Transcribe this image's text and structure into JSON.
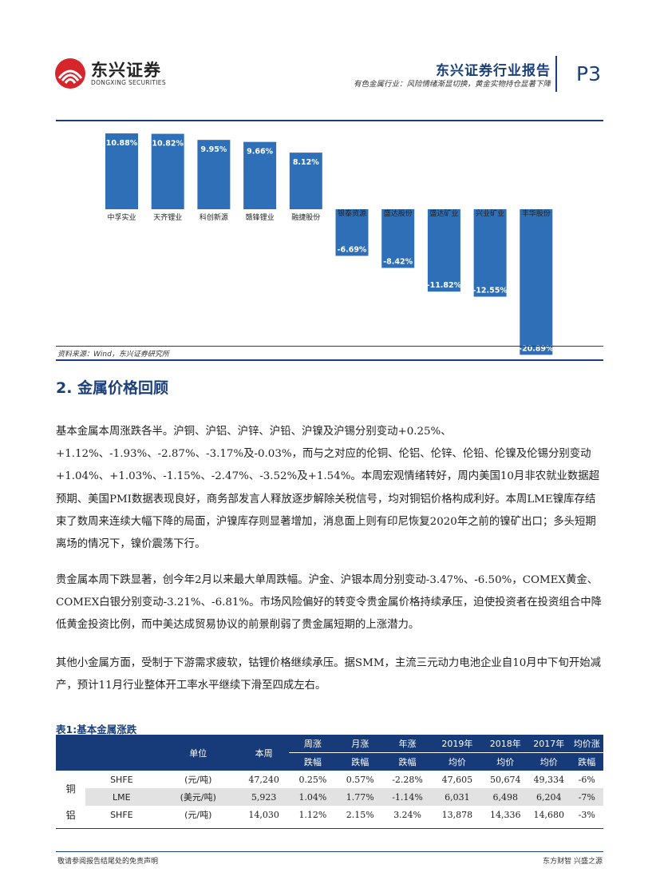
{
  "header": {
    "logo_cn": "东兴证券",
    "logo_en": "DONGXING SECURITIES",
    "report_title": "东兴证券行业报告",
    "report_subtitle": "有色金属行业：风险情绪渐显切换，黄金实物持仓显著下降",
    "page_number": "P3"
  },
  "chart_data": {
    "type": "bar",
    "categories": [
      "中孚实业",
      "天齐锂业",
      "科创新源",
      "赣锋锂业",
      "融捷股份",
      "银泰资源",
      "盛达股份",
      "盛达矿业",
      "兴业矿业",
      "丰华股份"
    ],
    "values": [
      10.88,
      10.82,
      9.95,
      9.66,
      8.12,
      -6.69,
      -8.42,
      -11.82,
      -12.55,
      -20.89
    ],
    "value_labels": [
      "10.88%",
      "10.82%",
      "9.95%",
      "9.66%",
      "8.12%",
      "-6.69%",
      "-8.42%",
      "-11.82%",
      "-12.55%",
      "-20.89%"
    ],
    "ylim": [
      -22,
      12
    ],
    "grid": false,
    "bar_color": "#2f6fb8"
  },
  "chart_source": "资料来源：Wind，东兴证券研究所",
  "section_title": "2. 金属价格回顾",
  "paragraphs": [
    "基本金属本周涨跌各半。沪铜、沪铝、沪锌、沪铅、沪镍及沪锡分别变动+0.25%、+1.12%、-1.93%、-2.87%、-3.17%及-0.03%，而与之对应的伦铜、伦铝、伦锌、伦铅、伦镍及伦锡分别变动+1.04%、+1.03%、-1.15%、-2.47%、-3.52%及+1.54%。本周宏观情绪转好，周内美国10月非农就业数据超预期、美国PMI数据表现良好，商务部发言人释放逐步解除关税信号，均对铜铝价格构成利好。本周LME镍库存结束了数周来连续大幅下降的局面，沪镍库存则显著增加，消息面上则有印尼恢复2020年之前的镍矿出口；多头短期离场的情况下，镍价震荡下行。",
    "贵金属本周下跌显著，创今年2月以来最大单周跌幅。沪金、沪银本周分别变动-3.47%、-6.50%，COMEX黄金、COMEX白银分别变动-3.21%、-6.81%。市场风险偏好的转变令贵金属价格持续承压，迫使投资者在投资组合中降低黄金投资比例，而中美达成贸易协议的前景削弱了贵金属短期的上涨潜力。",
    "其他小金属方面，受制于下游需求疲软，钴锂价格继续承压。据SMM，主流三元动力电池企业自10月中下旬开始减产，预计11月行业整体开工率水平继续下滑至四成左右。"
  ],
  "table": {
    "title": "表1:基本金属涨跌",
    "headers": {
      "unit": "单位",
      "week": "本周",
      "week_change_top": "周涨",
      "week_change_bottom": "跌幅",
      "month_change_top": "月涨",
      "month_change_bottom": "跌幅",
      "year_change_top": "年涨",
      "year_change_bottom": "跌幅",
      "y2019_top": "2019年",
      "y2019_bottom": "均价",
      "y2018_top": "2018年",
      "y2018_bottom": "均价",
      "y2017_top": "2017年",
      "y2017_bottom": "均价",
      "avg_change_top": "均价涨",
      "avg_change_bottom": "跌幅"
    },
    "rows": [
      {
        "metal": "铜",
        "exchange": "SHFE",
        "unit": "(元/吨)",
        "week": "47,240",
        "wk": "0.25%",
        "mo": "0.57%",
        "yr": "-2.28%",
        "y2019": "47,605",
        "y2018": "50,674",
        "y2017": "49,334",
        "avg": "-6%"
      },
      {
        "metal": "",
        "exchange": "LME",
        "unit": "(美元/吨)",
        "week": "5,923",
        "wk": "1.04%",
        "mo": "1.77%",
        "yr": "-1.14%",
        "y2019": "6,031",
        "y2018": "6,498",
        "y2017": "6,204",
        "avg": "-7%"
      },
      {
        "metal": "铝",
        "exchange": "SHFE",
        "unit": "(元/吨)",
        "week": "14,030",
        "wk": "1.12%",
        "mo": "2.15%",
        "yr": "3.24%",
        "y2019": "13,878",
        "y2018": "14,336",
        "y2017": "14,680",
        "avg": "-3%"
      }
    ]
  },
  "footer": {
    "left": "敬请参阅报告结尾处的免责声明",
    "right": "东方财智 兴盛之源"
  }
}
